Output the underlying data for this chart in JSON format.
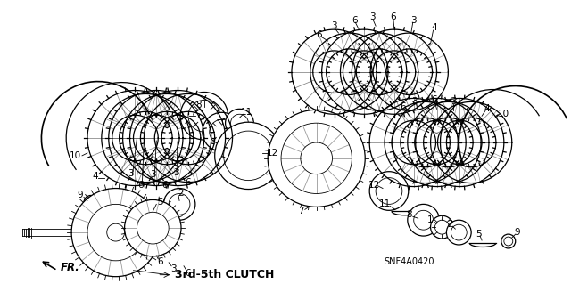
{
  "title": "3rd-5th CLUTCH",
  "part_number": "SNF4A0420",
  "bg_color": "#ffffff",
  "line_color": "#000000",
  "text_color": "#000000",
  "label_fontsize": 7.5,
  "title_fontsize": 9,
  "figsize": [
    6.4,
    3.19
  ],
  "dpi": 100
}
